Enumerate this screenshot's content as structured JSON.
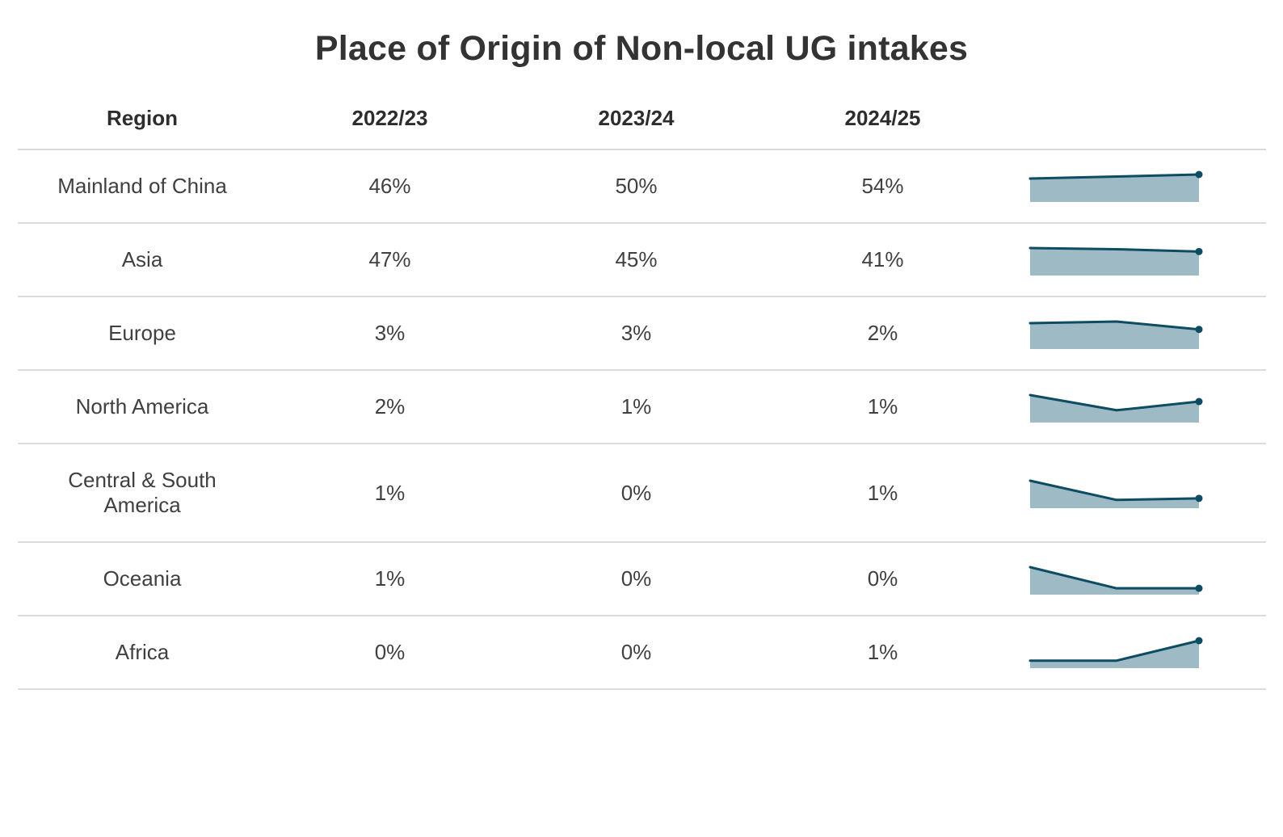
{
  "title": "Place of Origin of Non-local UG intakes",
  "colors": {
    "spark_line": "#0d4c63",
    "spark_fill": "#9dbac5",
    "divider": "#dcdcdc",
    "title_text": "#333333",
    "cell_text": "#404040"
  },
  "chart_data": {
    "type": "table",
    "title": "Place of Origin of Non-local UG intakes",
    "columns": [
      "Region",
      "2022/23",
      "2023/24",
      "2024/25"
    ],
    "sparkline_note": "area sparkline per row over the three academic years, scaled 0 to row max, end-point dot on 2024/25",
    "rows": [
      {
        "region": "Mainland of China",
        "values": [
          "46%",
          "50%",
          "54%"
        ],
        "spark_estimate": [
          46,
          50,
          54
        ]
      },
      {
        "region": "Asia",
        "values": [
          "47%",
          "45%",
          "41%"
        ],
        "spark_estimate": [
          47,
          45,
          41
        ]
      },
      {
        "region": "Europe",
        "values": [
          "3%",
          "3%",
          "2%"
        ],
        "spark_estimate": [
          3.3,
          3.5,
          2.5
        ]
      },
      {
        "region": "North America",
        "values": [
          "2%",
          "1%",
          "1%"
        ],
        "spark_estimate": [
          1.9,
          0.85,
          1.45
        ]
      },
      {
        "region": "Central & South America",
        "values": [
          "1%",
          "0%",
          "1%"
        ],
        "spark_estimate": [
          1.4,
          0.42,
          0.5
        ]
      },
      {
        "region": "Oceania",
        "values": [
          "1%",
          "0%",
          "0%"
        ],
        "spark_estimate": [
          1.3,
          0.3,
          0.3
        ]
      },
      {
        "region": "Africa",
        "values": [
          "0%",
          "0%",
          "1%"
        ],
        "spark_estimate": [
          0.3,
          0.3,
          1.1
        ]
      }
    ]
  }
}
